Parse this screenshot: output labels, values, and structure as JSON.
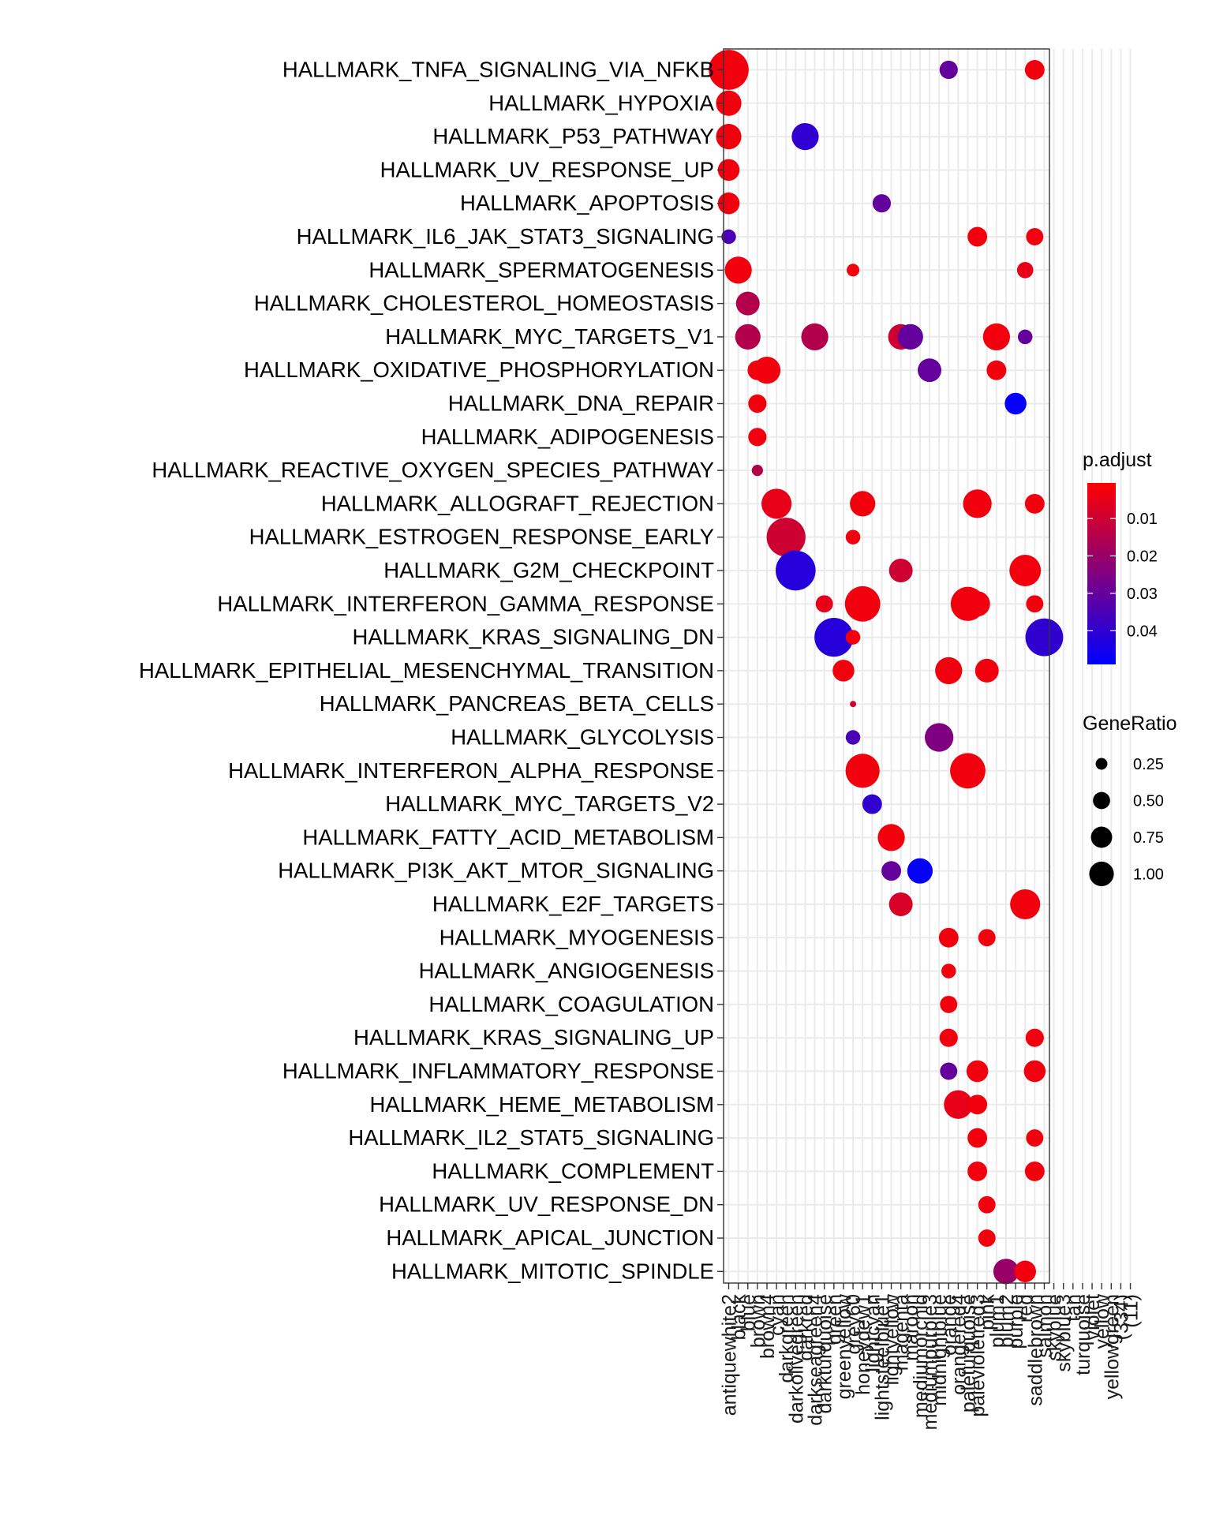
{
  "chart_data": {
    "type": "scatter",
    "subtype": "dotplot",
    "title": "",
    "xlabel": "",
    "ylabel": "",
    "x_categories": [
      "antiquewhite2",
      "black",
      "blue",
      "brown",
      "brown4",
      "cyan",
      "darkgreen",
      "darkolivegreen",
      "darkred",
      "darkseagreen4",
      "darkturquoise",
      "green",
      "greenyellow",
      "grey60",
      "honeydew1",
      "lightcyan",
      "lightsteelblue1",
      "lightyellow",
      "magenta",
      "maroon",
      "mediumorchid",
      "mediumpurple3",
      "midnightblue",
      "orange",
      "orangered4",
      "paleturquoise",
      "palevioletred3",
      "pink",
      "plum1",
      "plum2",
      "purple",
      "red",
      "saddlebrown",
      "salmon",
      "skyblue",
      "skyblue3",
      "tan",
      "turquoise",
      "violet",
      "yellow",
      "yellowgreen",
      "(334)",
      "(11)"
    ],
    "y_categories": [
      "HALLMARK_TNFA_SIGNALING_VIA_NFKB",
      "HALLMARK_HYPOXIA",
      "HALLMARK_P53_PATHWAY",
      "HALLMARK_UV_RESPONSE_UP",
      "HALLMARK_APOPTOSIS",
      "HALLMARK_IL6_JAK_STAT3_SIGNALING",
      "HALLMARK_SPERMATOGENESIS",
      "HALLMARK_CHOLESTEROL_HOMEOSTASIS",
      "HALLMARK_MYC_TARGETS_V1",
      "HALLMARK_OXIDATIVE_PHOSPHORYLATION",
      "HALLMARK_DNA_REPAIR",
      "HALLMARK_ADIPOGENESIS",
      "HALLMARK_REACTIVE_OXYGEN_SPECIES_PATHWAY",
      "HALLMARK_ALLOGRAFT_REJECTION",
      "HALLMARK_ESTROGEN_RESPONSE_EARLY",
      "HALLMARK_G2M_CHECKPOINT",
      "HALLMARK_INTERFERON_GAMMA_RESPONSE",
      "HALLMARK_KRAS_SIGNALING_DN",
      "HALLMARK_EPITHELIAL_MESENCHYMAL_TRANSITION",
      "HALLMARK_PANCREAS_BETA_CELLS",
      "HALLMARK_GLYCOLYSIS",
      "HALLMARK_INTERFERON_ALPHA_RESPONSE",
      "HALLMARK_MYC_TARGETS_V2",
      "HALLMARK_FATTY_ACID_METABOLISM",
      "HALLMARK_PI3K_AKT_MTOR_SIGNALING",
      "HALLMARK_E2F_TARGETS",
      "HALLMARK_MYOGENESIS",
      "HALLMARK_ANGIOGENESIS",
      "HALLMARK_COAGULATION",
      "HALLMARK_KRAS_SIGNALING_UP",
      "HALLMARK_INFLAMMATORY_RESPONSE",
      "HALLMARK_HEME_METABOLISM",
      "HALLMARK_IL2_STAT5_SIGNALING",
      "HALLMARK_COMPLEMENT",
      "HALLMARK_UV_RESPONSE_DN",
      "HALLMARK_APICAL_JUNCTION",
      "HALLMARK_MITOTIC_SPINDLE"
    ],
    "points": [
      {
        "x": 0,
        "y": 0,
        "gene_ratio": 0.95,
        "p_adjust": 0.003
      },
      {
        "x": 23,
        "y": 0,
        "gene_ratio": 0.22,
        "p_adjust": 0.03
      },
      {
        "x": 32,
        "y": 0,
        "gene_ratio": 0.25,
        "p_adjust": 0.003
      },
      {
        "x": 0,
        "y": 1,
        "gene_ratio": 0.4,
        "p_adjust": 0.003
      },
      {
        "x": 0,
        "y": 2,
        "gene_ratio": 0.4,
        "p_adjust": 0.003
      },
      {
        "x": 8,
        "y": 2,
        "gene_ratio": 0.45,
        "p_adjust": 0.04
      },
      {
        "x": 0,
        "y": 3,
        "gene_ratio": 0.3,
        "p_adjust": 0.003
      },
      {
        "x": 0,
        "y": 4,
        "gene_ratio": 0.3,
        "p_adjust": 0.003
      },
      {
        "x": 16,
        "y": 4,
        "gene_ratio": 0.22,
        "p_adjust": 0.03
      },
      {
        "x": 0,
        "y": 5,
        "gene_ratio": 0.15,
        "p_adjust": 0.035
      },
      {
        "x": 26,
        "y": 5,
        "gene_ratio": 0.25,
        "p_adjust": 0.003
      },
      {
        "x": 32,
        "y": 5,
        "gene_ratio": 0.2,
        "p_adjust": 0.003
      },
      {
        "x": 1,
        "y": 6,
        "gene_ratio": 0.45,
        "p_adjust": 0.003
      },
      {
        "x": 13,
        "y": 6,
        "gene_ratio": 0.12,
        "p_adjust": 0.003
      },
      {
        "x": 31,
        "y": 6,
        "gene_ratio": 0.18,
        "p_adjust": 0.005
      },
      {
        "x": 2,
        "y": 7,
        "gene_ratio": 0.35,
        "p_adjust": 0.015
      },
      {
        "x": 2,
        "y": 8,
        "gene_ratio": 0.4,
        "p_adjust": 0.015
      },
      {
        "x": 9,
        "y": 8,
        "gene_ratio": 0.45,
        "p_adjust": 0.015
      },
      {
        "x": 18,
        "y": 8,
        "gene_ratio": 0.4,
        "p_adjust": 0.01
      },
      {
        "x": 19,
        "y": 8,
        "gene_ratio": 0.4,
        "p_adjust": 0.03
      },
      {
        "x": 28,
        "y": 8,
        "gene_ratio": 0.45,
        "p_adjust": 0.003
      },
      {
        "x": 31,
        "y": 8,
        "gene_ratio": 0.15,
        "p_adjust": 0.03
      },
      {
        "x": 3,
        "y": 9,
        "gene_ratio": 0.25,
        "p_adjust": 0.003
      },
      {
        "x": 4,
        "y": 9,
        "gene_ratio": 0.45,
        "p_adjust": 0.003
      },
      {
        "x": 21,
        "y": 9,
        "gene_ratio": 0.35,
        "p_adjust": 0.03
      },
      {
        "x": 28,
        "y": 9,
        "gene_ratio": 0.25,
        "p_adjust": 0.003
      },
      {
        "x": 3,
        "y": 10,
        "gene_ratio": 0.22,
        "p_adjust": 0.003
      },
      {
        "x": 30,
        "y": 10,
        "gene_ratio": 0.3,
        "p_adjust": 0.048
      },
      {
        "x": 3,
        "y": 11,
        "gene_ratio": 0.22,
        "p_adjust": 0.003
      },
      {
        "x": 3,
        "y": 12,
        "gene_ratio": 0.1,
        "p_adjust": 0.015
      },
      {
        "x": 5,
        "y": 13,
        "gene_ratio": 0.55,
        "p_adjust": 0.005
      },
      {
        "x": 14,
        "y": 13,
        "gene_ratio": 0.4,
        "p_adjust": 0.003
      },
      {
        "x": 26,
        "y": 13,
        "gene_ratio": 0.5,
        "p_adjust": 0.003
      },
      {
        "x": 32,
        "y": 13,
        "gene_ratio": 0.25,
        "p_adjust": 0.003
      },
      {
        "x": 6,
        "y": 14,
        "gene_ratio": 0.9,
        "p_adjust": 0.01
      },
      {
        "x": 13,
        "y": 14,
        "gene_ratio": 0.15,
        "p_adjust": 0.003
      },
      {
        "x": 7,
        "y": 15,
        "gene_ratio": 0.95,
        "p_adjust": 0.042
      },
      {
        "x": 18,
        "y": 15,
        "gene_ratio": 0.35,
        "p_adjust": 0.01
      },
      {
        "x": 31,
        "y": 15,
        "gene_ratio": 0.6,
        "p_adjust": 0.003
      },
      {
        "x": 10,
        "y": 16,
        "gene_ratio": 0.2,
        "p_adjust": 0.005
      },
      {
        "x": 14,
        "y": 16,
        "gene_ratio": 0.75,
        "p_adjust": 0.003
      },
      {
        "x": 25,
        "y": 16,
        "gene_ratio": 0.7,
        "p_adjust": 0.003
      },
      {
        "x": 26,
        "y": 16,
        "gene_ratio": 0.4,
        "p_adjust": 0.003
      },
      {
        "x": 32,
        "y": 16,
        "gene_ratio": 0.2,
        "p_adjust": 0.003
      },
      {
        "x": 11,
        "y": 17,
        "gene_ratio": 0.9,
        "p_adjust": 0.042
      },
      {
        "x": 13,
        "y": 17,
        "gene_ratio": 0.15,
        "p_adjust": 0.003
      },
      {
        "x": 33,
        "y": 17,
        "gene_ratio": 0.85,
        "p_adjust": 0.04
      },
      {
        "x": 12,
        "y": 18,
        "gene_ratio": 0.3,
        "p_adjust": 0.003
      },
      {
        "x": 23,
        "y": 18,
        "gene_ratio": 0.45,
        "p_adjust": 0.003
      },
      {
        "x": 27,
        "y": 18,
        "gene_ratio": 0.35,
        "p_adjust": 0.003
      },
      {
        "x": 13,
        "y": 19,
        "gene_ratio": 0.05,
        "p_adjust": 0.01
      },
      {
        "x": 13,
        "y": 20,
        "gene_ratio": 0.15,
        "p_adjust": 0.035
      },
      {
        "x": 22,
        "y": 20,
        "gene_ratio": 0.5,
        "p_adjust": 0.025
      },
      {
        "x": 14,
        "y": 21,
        "gene_ratio": 0.7,
        "p_adjust": 0.003
      },
      {
        "x": 25,
        "y": 21,
        "gene_ratio": 0.75,
        "p_adjust": 0.003
      },
      {
        "x": 15,
        "y": 22,
        "gene_ratio": 0.25,
        "p_adjust": 0.04
      },
      {
        "x": 17,
        "y": 23,
        "gene_ratio": 0.45,
        "p_adjust": 0.003
      },
      {
        "x": 17,
        "y": 24,
        "gene_ratio": 0.25,
        "p_adjust": 0.03
      },
      {
        "x": 20,
        "y": 24,
        "gene_ratio": 0.4,
        "p_adjust": 0.048
      },
      {
        "x": 18,
        "y": 25,
        "gene_ratio": 0.35,
        "p_adjust": 0.008
      },
      {
        "x": 31,
        "y": 25,
        "gene_ratio": 0.55,
        "p_adjust": 0.003
      },
      {
        "x": 23,
        "y": 26,
        "gene_ratio": 0.25,
        "p_adjust": 0.003
      },
      {
        "x": 27,
        "y": 26,
        "gene_ratio": 0.2,
        "p_adjust": 0.003
      },
      {
        "x": 23,
        "y": 27,
        "gene_ratio": 0.15,
        "p_adjust": 0.003
      },
      {
        "x": 23,
        "y": 28,
        "gene_ratio": 0.2,
        "p_adjust": 0.003
      },
      {
        "x": 23,
        "y": 29,
        "gene_ratio": 0.22,
        "p_adjust": 0.003
      },
      {
        "x": 32,
        "y": 29,
        "gene_ratio": 0.22,
        "p_adjust": 0.003
      },
      {
        "x": 23,
        "y": 30,
        "gene_ratio": 0.2,
        "p_adjust": 0.03
      },
      {
        "x": 26,
        "y": 30,
        "gene_ratio": 0.3,
        "p_adjust": 0.003
      },
      {
        "x": 32,
        "y": 30,
        "gene_ratio": 0.3,
        "p_adjust": 0.003
      },
      {
        "x": 24,
        "y": 31,
        "gene_ratio": 0.5,
        "p_adjust": 0.005
      },
      {
        "x": 26,
        "y": 31,
        "gene_ratio": 0.25,
        "p_adjust": 0.003
      },
      {
        "x": 26,
        "y": 32,
        "gene_ratio": 0.25,
        "p_adjust": 0.003
      },
      {
        "x": 32,
        "y": 32,
        "gene_ratio": 0.2,
        "p_adjust": 0.003
      },
      {
        "x": 26,
        "y": 33,
        "gene_ratio": 0.25,
        "p_adjust": 0.003
      },
      {
        "x": 32,
        "y": 33,
        "gene_ratio": 0.25,
        "p_adjust": 0.003
      },
      {
        "x": 27,
        "y": 34,
        "gene_ratio": 0.2,
        "p_adjust": 0.003
      },
      {
        "x": 27,
        "y": 35,
        "gene_ratio": 0.2,
        "p_adjust": 0.003
      },
      {
        "x": 29,
        "y": 36,
        "gene_ratio": 0.4,
        "p_adjust": 0.02
      },
      {
        "x": 31,
        "y": 36,
        "gene_ratio": 0.3,
        "p_adjust": 0.003
      }
    ],
    "color_legend": {
      "title": "p.adjust",
      "ticks": [
        "0.01",
        "0.02",
        "0.03",
        "0.04"
      ],
      "tick_values": [
        0.01,
        0.02,
        0.03,
        0.04
      ],
      "range": [
        0.0005,
        0.049
      ],
      "low_color": "#ff0000",
      "high_color": "#0000ff"
    },
    "size_legend": {
      "title": "GeneRatio",
      "labels": [
        "0.25",
        "0.50",
        "0.75",
        "1.00"
      ],
      "values": [
        0.25,
        0.5,
        0.75,
        1.0
      ]
    },
    "grid": true,
    "legend_position": "right"
  }
}
